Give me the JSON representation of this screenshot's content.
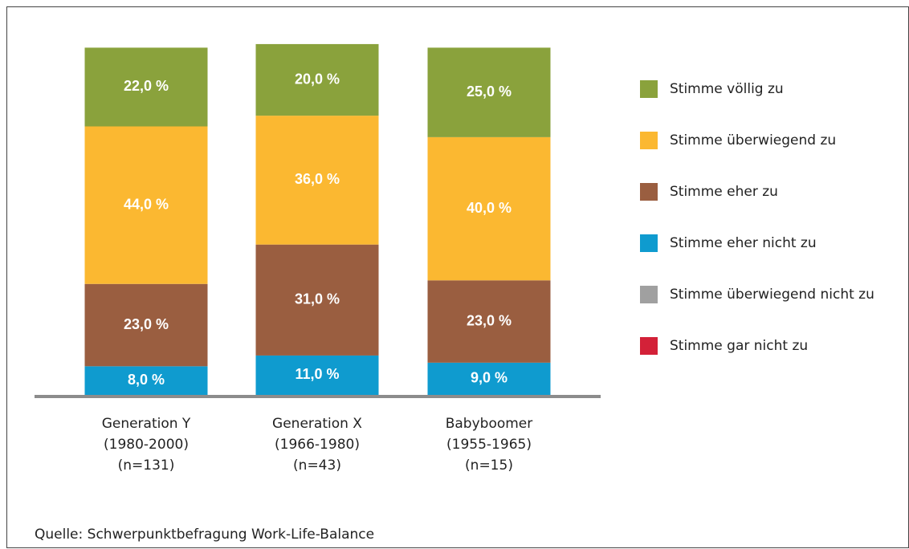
{
  "chart_data": {
    "type": "stacked_bar",
    "categories": [
      [
        "Generation Y",
        "(1980-2000)",
        "(n=131)"
      ],
      [
        "Generation X",
        "(1966-1980)",
        "(n=43)"
      ],
      [
        "Babyboomer",
        "(1955-1965)",
        "(n=15)"
      ]
    ],
    "series": [
      {
        "name": "Stimme völlig zu",
        "color": "#8aa23c",
        "values": [
          22,
          20,
          25
        ],
        "value_labels": [
          "22,0 %",
          "20,0 %",
          "25,0 %"
        ]
      },
      {
        "name": "Stimme überwiegend zu",
        "color": "#fbb831",
        "values": [
          44,
          36,
          40
        ],
        "value_labels": [
          "44,0 %",
          "36,0 %",
          "40,0 %"
        ]
      },
      {
        "name": "Stimme eher zu",
        "color": "#9a5e40",
        "values": [
          23,
          31,
          23
        ],
        "value_labels": [
          "23,0 %",
          "31,0 %",
          "23,0 %"
        ]
      },
      {
        "name": "Stimme eher nicht zu",
        "color": "#0f9bcf",
        "values": [
          8,
          11,
          9
        ],
        "value_labels": [
          "8,0 %",
          "11,0 %",
          "9,0 %"
        ]
      },
      {
        "name": "Stimme überwiegend nicht zu",
        "color": "#a0a0a0",
        "values": [
          0,
          0,
          0
        ]
      },
      {
        "name": "Stimme gar nicht zu",
        "color": "#d32138",
        "values": [
          0,
          0,
          0
        ]
      }
    ],
    "ylim": [
      0,
      100
    ],
    "legend": "right",
    "source": "Quelle: Schwerpunktbefragung Work-Life-Balance"
  }
}
